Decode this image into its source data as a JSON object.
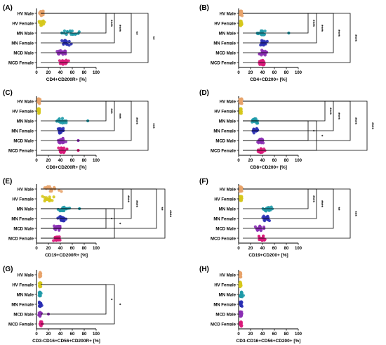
{
  "figure": {
    "groups": [
      "HV Male",
      "HV Female",
      "MN Male",
      "MN Female",
      "MCD Male",
      "MCD Female"
    ],
    "group_colors": [
      "#e8a36a",
      "#d6c81c",
      "#1f9aa8",
      "#2a2fb4",
      "#8b2fb4",
      "#d9197a"
    ]
  },
  "chart_data": [
    {
      "type": "scatter",
      "panel": "(A)",
      "xlabel": "CD4+CD200R+ [%]",
      "xticks": [
        "0",
        "20",
        "40",
        "60",
        "80",
        "100"
      ],
      "xlim": [
        0,
        100
      ],
      "centers": [
        8,
        8,
        55,
        50,
        42,
        45
      ],
      "spreads": [
        4,
        4,
        12,
        7,
        7,
        7
      ],
      "outliers": [
        null,
        null,
        null,
        null,
        null,
        null
      ],
      "significance": [
        {
          "from": 1,
          "to": 3,
          "stars": "****"
        },
        {
          "from": 1,
          "to": 4,
          "stars": "****"
        },
        {
          "from": 0,
          "to": 3,
          "stars": "****"
        },
        {
          "from": 1,
          "to": 5,
          "stars": "**"
        },
        {
          "from": 0,
          "to": 4,
          "stars": "****"
        },
        {
          "from": 1,
          "to": 6,
          "stars": "**"
        },
        {
          "from": 0,
          "to": 5,
          "stars": "**"
        },
        {
          "from": 0,
          "to": 6,
          "stars": "**"
        }
      ]
    },
    {
      "type": "scatter",
      "panel": "(B)",
      "xlabel": "CD4+CD200+ [%]",
      "xticks": [
        "0",
        "20",
        "40",
        "60",
        "80",
        "100"
      ],
      "xlim": [
        0,
        100
      ],
      "centers": [
        4,
        4,
        40,
        42,
        40,
        40
      ],
      "spreads": [
        1.5,
        1.5,
        9,
        5,
        6,
        6
      ],
      "outliers": [
        null,
        null,
        84,
        null,
        null,
        null
      ],
      "significance": [
        {
          "from": 1,
          "to": 3,
          "stars": "****"
        },
        {
          "from": 1,
          "to": 4,
          "stars": "****"
        },
        {
          "from": 0,
          "to": 3,
          "stars": "****"
        },
        {
          "from": 1,
          "to": 5,
          "stars": "****"
        },
        {
          "from": 0,
          "to": 4,
          "stars": "****"
        },
        {
          "from": 1,
          "to": 6,
          "stars": "****"
        },
        {
          "from": 0,
          "to": 5,
          "stars": "****"
        },
        {
          "from": 0,
          "to": 6,
          "stars": "****"
        }
      ]
    },
    {
      "type": "scatter",
      "panel": "(C)",
      "xlabel": "CD8+CD200R+ [%]",
      "xticks": [
        "0",
        "20",
        "40",
        "60",
        "80",
        "100"
      ],
      "xlim": [
        0,
        100
      ],
      "centers": [
        4,
        4,
        42,
        42,
        42,
        45
      ],
      "spreads": [
        1.5,
        1.5,
        8,
        5,
        5,
        7
      ],
      "outliers": [
        null,
        null,
        86,
        null,
        70,
        70
      ],
      "significance": [
        {
          "from": 1,
          "to": 3,
          "stars": "***"
        },
        {
          "from": 1,
          "to": 4,
          "stars": "***"
        },
        {
          "from": 0,
          "to": 3,
          "stars": "****"
        },
        {
          "from": 1,
          "to": 5,
          "stars": "****"
        },
        {
          "from": 0,
          "to": 4,
          "stars": "****"
        },
        {
          "from": 1,
          "to": 6,
          "stars": "***"
        },
        {
          "from": 0,
          "to": 5,
          "stars": "****"
        },
        {
          "from": 0,
          "to": 6,
          "stars": "****"
        }
      ]
    },
    {
      "type": "scatter",
      "panel": "(D)",
      "xlabel": "CD8+CD200+ [%]",
      "xticks": [
        "0",
        "20",
        "40",
        "60",
        "80",
        "100"
      ],
      "xlim": [
        0,
        100
      ],
      "centers": [
        4,
        4,
        28,
        28,
        36,
        38
      ],
      "spreads": [
        1.5,
        1.5,
        5,
        4,
        4,
        5
      ],
      "outliers": [
        null,
        null,
        null,
        null,
        null,
        null
      ],
      "significance": [
        {
          "from": 3,
          "to": 5,
          "stars": "*"
        },
        {
          "from": 3,
          "to": 6,
          "stars": "*"
        },
        {
          "from": 1,
          "to": 3,
          "stars": "****"
        },
        {
          "from": 1,
          "to": 4,
          "stars": "****"
        },
        {
          "from": 0,
          "to": 3,
          "stars": "**"
        },
        {
          "from": 1,
          "to": 5,
          "stars": "****"
        },
        {
          "from": 0,
          "to": 4,
          "stars": "**"
        },
        {
          "from": 1,
          "to": 6,
          "stars": "****"
        },
        {
          "from": 0,
          "to": 5,
          "stars": "****"
        },
        {
          "from": 0,
          "to": 6,
          "stars": "****"
        }
      ]
    },
    {
      "type": "scatter",
      "panel": "(E)",
      "xlabel": "CD19+CD200R+ [%]",
      "xticks": [
        "0",
        "20",
        "40",
        "60",
        "80",
        "100"
      ],
      "xlim": [
        0,
        100
      ],
      "centers": [
        25,
        22,
        45,
        42,
        35,
        35
      ],
      "spreads": [
        12,
        11,
        9,
        6,
        6,
        6
      ],
      "outliers": [
        null,
        null,
        72,
        null,
        null,
        null
      ],
      "significance": [
        {
          "from": 3,
          "to": 5,
          "stars": "*"
        },
        {
          "from": 3,
          "to": 6,
          "stars": "*"
        },
        {
          "from": 1,
          "to": 3,
          "stars": "****"
        },
        {
          "from": 1,
          "to": 4,
          "stars": "****"
        },
        {
          "from": 0,
          "to": 3,
          "stars": "****"
        },
        {
          "from": 0,
          "to": 4,
          "stars": "****"
        },
        {
          "from": 1,
          "to": 5,
          "stars": "**"
        },
        {
          "from": 1,
          "to": 6,
          "stars": "****"
        },
        {
          "from": 0,
          "to": 6,
          "stars": "**"
        }
      ]
    },
    {
      "type": "scatter",
      "panel": "(F)",
      "xlabel": "CD19+CD200+ [%]",
      "xticks": [
        "0",
        "20",
        "40",
        "60",
        "80",
        "100"
      ],
      "xlim": [
        0,
        100
      ],
      "centers": [
        4,
        4,
        48,
        46,
        34,
        38
      ],
      "spreads": [
        1.5,
        1.5,
        8,
        6,
        6,
        6
      ],
      "outliers": [
        null,
        null,
        null,
        null,
        null,
        null
      ],
      "significance": [
        {
          "from": 1,
          "to": 3,
          "stars": "****"
        },
        {
          "from": 1,
          "to": 4,
          "stars": "****"
        },
        {
          "from": 0,
          "to": 3,
          "stars": "****"
        },
        {
          "from": 1,
          "to": 5,
          "stars": "**"
        },
        {
          "from": 0,
          "to": 4,
          "stars": "****"
        },
        {
          "from": 1,
          "to": 6,
          "stars": "***"
        },
        {
          "from": 0,
          "to": 5,
          "stars": "**"
        },
        {
          "from": 0,
          "to": 6,
          "stars": "***"
        }
      ]
    },
    {
      "type": "scatter",
      "panel": "(G)",
      "xlabel": "CD3-CD16+CD56+CD200R+ [%]",
      "xticks": [
        "0",
        "20",
        "40",
        "60",
        "80",
        "100"
      ],
      "xlim": [
        0,
        100
      ],
      "centers": [
        6,
        6,
        6,
        6,
        6,
        8
      ],
      "spreads": [
        1.5,
        1.5,
        2,
        2,
        2,
        2
      ],
      "outliers": [
        null,
        null,
        null,
        null,
        20,
        null
      ],
      "significance": [
        {
          "from": 2,
          "to": 5,
          "stars": "*"
        },
        {
          "from": 2,
          "to": 6,
          "stars": "*"
        },
        {
          "from": 0,
          "to": 6,
          "stars": "***"
        }
      ]
    },
    {
      "type": "scatter",
      "panel": "(H)",
      "xlabel": "CD3-CD16+CD56+CD200+ [%]",
      "xticks": [
        "0",
        "20",
        "40",
        "60",
        "80",
        "100"
      ],
      "xlim": [
        0,
        100
      ],
      "centers": [
        3,
        3,
        5,
        4,
        4,
        4
      ],
      "spreads": [
        1,
        1,
        2,
        1.5,
        1.5,
        1.5
      ],
      "outliers": [
        null,
        null,
        null,
        null,
        null,
        null
      ],
      "significance": []
    }
  ]
}
